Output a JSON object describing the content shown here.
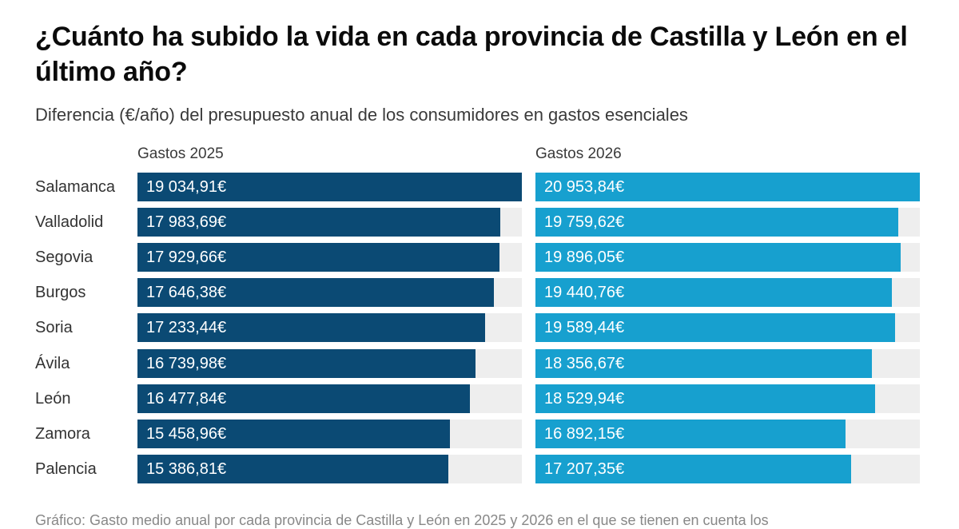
{
  "header": {
    "title": "¿Cuánto ha subido la vida en cada provincia de Castilla y León en el último año?",
    "subtitle": "Diferencia (€/año) del presupuesto anual de los consumidores en gastos esenciales"
  },
  "footnote": "Gráfico: Gasto medio anual por cada provincia de Castilla y León en 2025 y 2026 en el que se tienen en cuenta los",
  "colors": {
    "series_2025": "#0b4a74",
    "series_2026": "#17a0cf",
    "track": "#eeeeee"
  },
  "chart_data": {
    "type": "bar",
    "orientation": "horizontal",
    "title": "¿Cuánto ha subido la vida en cada provincia de Castilla y León en el último año?",
    "subtitle": "Diferencia (€/año) del presupuesto anual de los consumidores en gastos esenciales",
    "categories": [
      "Salamanca",
      "Valladolid",
      "Segovia",
      "Burgos",
      "Soria",
      "Ávila",
      "León",
      "Zamora",
      "Palencia"
    ],
    "series": [
      {
        "name": "Gastos 2025",
        "values": [
          19034.91,
          17983.69,
          17929.66,
          17646.38,
          17233.44,
          16739.98,
          16477.84,
          15458.96,
          15386.81
        ],
        "labels": [
          "19 034,91€",
          "17 983,69€",
          "17 929,66€",
          "17 646,38€",
          "17 233,44€",
          "16 739,98€",
          "16 477,84€",
          "15 458,96€",
          "15 386,81€"
        ],
        "max": 19034.91
      },
      {
        "name": "Gastos 2026",
        "values": [
          20953.84,
          19759.62,
          19896.05,
          19440.76,
          19589.44,
          18356.67,
          18529.94,
          16892.15,
          17207.35
        ],
        "labels": [
          "20 953,84€",
          "19 759,62€",
          "19 896,05€",
          "19 440,76€",
          "19 589,44€",
          "18 356,67€",
          "18 529,94€",
          "16 892,15€",
          "17 207,35€"
        ],
        "max": 20953.84
      }
    ],
    "xlabel": "",
    "ylabel": "",
    "unit": "€/año",
    "grid": false,
    "legend": "column-headers"
  }
}
